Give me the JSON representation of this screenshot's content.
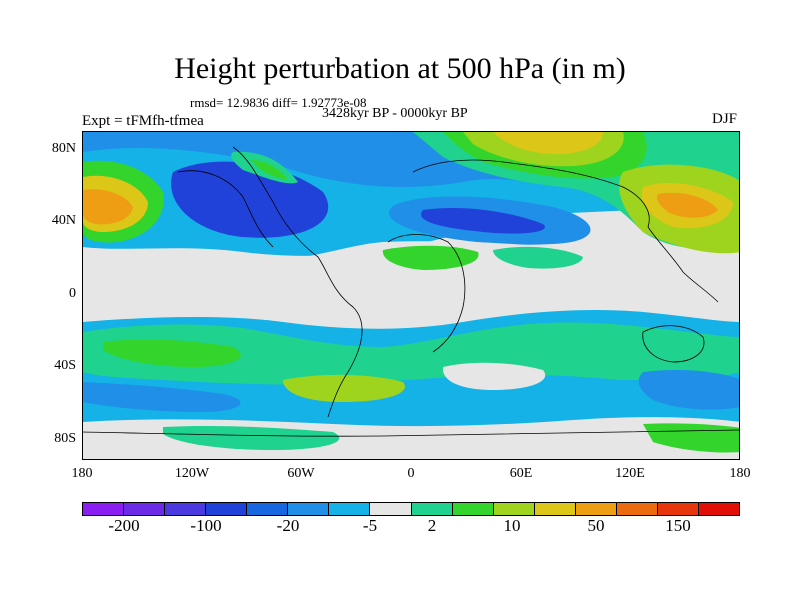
{
  "title": "Height perturbation at 500 hPa (in m)",
  "stats_text": "rmsd= 12.9836 diff= 1.92773e-08",
  "period_text": "3428kyr BP - 0000kyr BP",
  "expt_text": "Expt = tFMfh-tfmea",
  "season": "DJF",
  "lat_labels": [
    "80N",
    "40N",
    "0",
    "40S",
    "80S"
  ],
  "lon_labels": [
    "180",
    "120W",
    "60W",
    "0",
    "60E",
    "120E",
    "180"
  ],
  "colorbar": {
    "colors": [
      "#8b1ef0",
      "#6e2be6",
      "#4a3ae0",
      "#2142d8",
      "#1768e0",
      "#1f8fe8",
      "#14b2e6",
      "#e6e6e6",
      "#1fd38f",
      "#33d42b",
      "#9fd41e",
      "#dcc617",
      "#ee9e12",
      "#ec6a10",
      "#e8360c",
      "#e01008"
    ],
    "labels": [
      "-200",
      "-100",
      "-20",
      "-5",
      "2",
      "10",
      "50",
      "150"
    ]
  }
}
